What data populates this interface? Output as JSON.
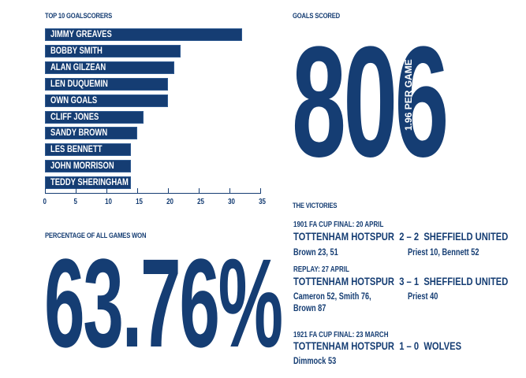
{
  "colors": {
    "navy": "#153d73",
    "background": "#ffffff"
  },
  "top_scorers": {
    "title": "TOP 10 GOALSCORERS",
    "axis_ticks": [
      "0",
      "5",
      "10",
      "15",
      "20",
      "25",
      "30",
      "35"
    ]
  },
  "chart_data": {
    "type": "bar",
    "orientation": "horizontal",
    "title": "TOP 10 GOALSCORERS",
    "categories": [
      "JIMMY GREAVES",
      "BOBBY SMITH",
      "ALAN GILZEAN",
      "LEN DUQUEMIN",
      "OWN GOALS",
      "CLIFF JONES",
      "SANDY BROWN",
      "LES BENNETT",
      "JOHN MORRISON",
      "TEDDY SHERINGHAM"
    ],
    "values": [
      32,
      22,
      21,
      20,
      20,
      16,
      15,
      14,
      14,
      14
    ],
    "xlabel": "",
    "ylabel": "",
    "xlim": [
      0,
      35
    ],
    "xticks": [
      0,
      5,
      10,
      15,
      20,
      25,
      30,
      35
    ],
    "grid": false,
    "legend": null,
    "bar_color": "#153d73"
  },
  "goals_scored": {
    "title": "GOALS SCORED",
    "value": "806",
    "average_label": "AVERAGE",
    "average_value": "1.96 PER GAME"
  },
  "percentage": {
    "title": "PERCENTAGE OF ALL GAMES WON",
    "value": "63.76%"
  },
  "victories": {
    "title": "THE VICTORIES",
    "matches": [
      {
        "heading": "1901 FA CUP FINAL: 20 APRIL",
        "home": "TOTTENHAM HOTSPUR",
        "score": "2 – 2",
        "away": "SHEFFIELD UNITED",
        "home_scorers": "Brown 23, 51",
        "away_scorers": "Priest 10, Bennett 52"
      },
      {
        "heading": "REPLAY: 27 APRIL",
        "home": "TOTTENHAM HOTSPUR",
        "score": "3 – 1",
        "away": "SHEFFIELD UNITED",
        "home_scorers": "Cameron 52, Smith 76,",
        "home_scorers_2": "Brown 87",
        "away_scorers": "Priest 40"
      },
      {
        "heading": "1921 FA CUP FINAL: 23 MARCH",
        "home": "TOTTENHAM HOTSPUR",
        "score": "1 – 0",
        "away": "WOLVES",
        "home_scorers": "Dimmock 53",
        "away_scorers": ""
      }
    ]
  }
}
